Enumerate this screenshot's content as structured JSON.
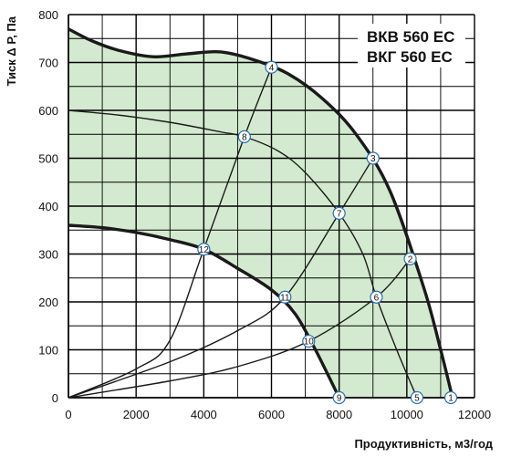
{
  "chart_data": {
    "type": "line",
    "models": [
      "ВКВ 560 ЕС",
      "ВКГ 560 ЕС"
    ],
    "xlabel": "Продуктивність, м3/год",
    "ylabel": "Тиск Δ Р, Па",
    "xlim": [
      0,
      12000
    ],
    "ylim": [
      0,
      800
    ],
    "x_ticks": [
      "0",
      "2000",
      "4000",
      "6000",
      "8000",
      "10000",
      "12000"
    ],
    "y_ticks": [
      "0",
      "100",
      "200",
      "300",
      "400",
      "500",
      "600",
      "700",
      "800"
    ],
    "grid": true,
    "colors": {
      "fill": "#d4ead0",
      "curve": "#1a1a1a",
      "grid": "#000000",
      "marker_stroke": "#2a6fb0",
      "marker_fill": "#ffffff"
    },
    "operating_area": {
      "upper": [
        [
          0,
          770
        ],
        [
          700,
          745
        ],
        [
          1500,
          725
        ],
        [
          2500,
          712
        ],
        [
          3500,
          718
        ],
        [
          4500,
          722
        ],
        [
          5500,
          705
        ],
        [
          6500,
          676
        ],
        [
          7500,
          625
        ],
        [
          8500,
          550
        ],
        [
          9500,
          432
        ],
        [
          10500,
          230
        ],
        [
          11000,
          100
        ],
        [
          11350,
          0
        ]
      ],
      "lower": [
        [
          0,
          360
        ],
        [
          1000,
          355
        ],
        [
          2000,
          345
        ],
        [
          3000,
          330
        ],
        [
          4000,
          310
        ],
        [
          5000,
          270
        ],
        [
          6000,
          225
        ],
        [
          6700,
          175
        ],
        [
          7300,
          100
        ],
        [
          8000,
          0
        ]
      ]
    },
    "fan_curves": [
      {
        "points": [
          [
            0,
            600
          ],
          [
            1500,
            590
          ],
          [
            3000,
            575
          ],
          [
            4500,
            555
          ],
          [
            5200,
            545
          ],
          [
            6200,
            515
          ],
          [
            7000,
            470
          ],
          [
            8000,
            385
          ],
          [
            8700,
            300
          ],
          [
            9100,
            210
          ],
          [
            9700,
            100
          ],
          [
            10300,
            0
          ]
        ]
      }
    ],
    "system_lines": [
      {
        "points": [
          [
            0,
            0
          ],
          [
            2000,
            60
          ],
          [
            3000,
            120
          ],
          [
            4000,
            310
          ],
          [
            5200,
            545
          ],
          [
            6000,
            690
          ]
        ]
      },
      {
        "points": [
          [
            0,
            0
          ],
          [
            3000,
            75
          ],
          [
            5000,
            140
          ],
          [
            6400,
            210
          ],
          [
            8000,
            385
          ],
          [
            9000,
            500
          ]
        ]
      },
      {
        "points": [
          [
            0,
            0
          ],
          [
            3000,
            35
          ],
          [
            5000,
            65
          ],
          [
            7100,
            118
          ],
          [
            9100,
            210
          ],
          [
            10100,
            290
          ]
        ]
      }
    ],
    "points": [
      {
        "label": "1",
        "x": 11300,
        "y": 0
      },
      {
        "label": "2",
        "x": 10100,
        "y": 290
      },
      {
        "label": "3",
        "x": 9000,
        "y": 500
      },
      {
        "label": "4",
        "x": 6000,
        "y": 690
      },
      {
        "label": "5",
        "x": 10300,
        "y": 0
      },
      {
        "label": "6",
        "x": 9100,
        "y": 210
      },
      {
        "label": "7",
        "x": 8000,
        "y": 385
      },
      {
        "label": "8",
        "x": 5200,
        "y": 545
      },
      {
        "label": "9",
        "x": 8000,
        "y": 0
      },
      {
        "label": "10",
        "x": 7100,
        "y": 118
      },
      {
        "label": "11",
        "x": 6400,
        "y": 210
      },
      {
        "label": "12",
        "x": 4000,
        "y": 310
      }
    ]
  }
}
